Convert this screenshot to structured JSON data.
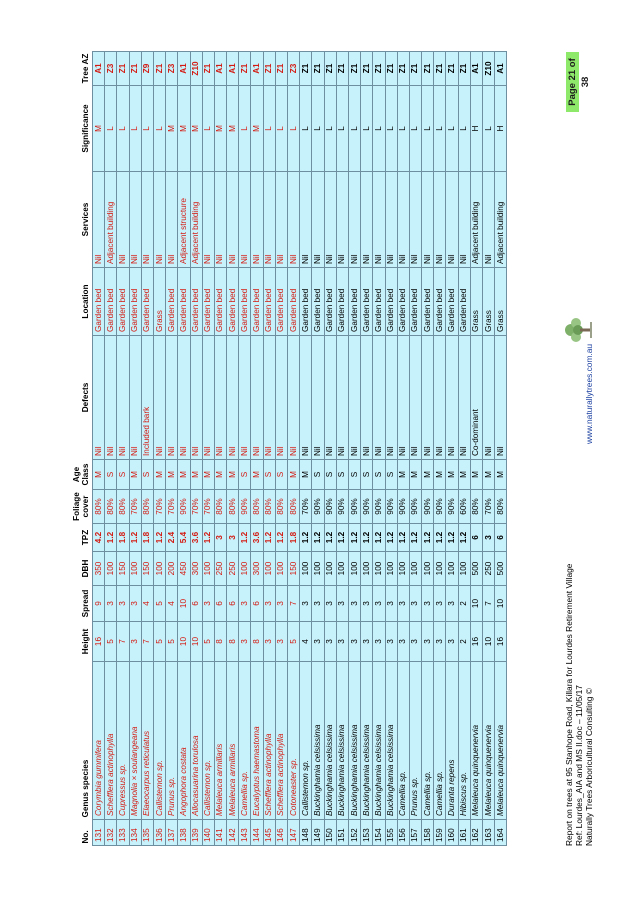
{
  "headers": [
    "No.",
    "Genus species",
    "Height",
    "Spread",
    "DBH",
    "TPZ",
    "Foliage cover",
    "Age Class",
    "Defects",
    "Location",
    "Services",
    "Significance",
    "Tree AZ"
  ],
  "rows": [
    [
      "131",
      "Corymbia gummifera",
      "16",
      "9",
      "350",
      "4.2",
      "80%",
      "M",
      "Nil",
      "Garden bed",
      "Nil",
      "M",
      "A1",
      "red"
    ],
    [
      "132",
      "Schefflera actinophylla",
      "5",
      "3",
      "100",
      "1.2",
      "80%",
      "S",
      "Nil",
      "Garden bed",
      "Adjacent building",
      "L",
      "Z3",
      "red"
    ],
    [
      "133",
      "Cupressus sp.",
      "7",
      "3",
      "150",
      "1.8",
      "80%",
      "S",
      "Nil",
      "Garden bed",
      "Nil",
      "L",
      "Z1",
      "red"
    ],
    [
      "134",
      "Magnolia × soulangeana",
      "3",
      "3",
      "100",
      "1.2",
      "70%",
      "M",
      "Nil",
      "Garden bed",
      "Nil",
      "L",
      "Z1",
      "red"
    ],
    [
      "135",
      "Elaeocarpus reticulatus",
      "7",
      "4",
      "150",
      "1.8",
      "80%",
      "S",
      "Included bark",
      "Garden bed",
      "Nil",
      "L",
      "Z9",
      "red"
    ],
    [
      "136",
      "Callistemon sp.",
      "5",
      "5",
      "100",
      "1.2",
      "70%",
      "M",
      "Nil",
      "Grass",
      "Nil",
      "L",
      "Z1",
      "red"
    ],
    [
      "137",
      "Prunus sp.",
      "5",
      "4",
      "200",
      "2.4",
      "70%",
      "M",
      "Nil",
      "Garden bed",
      "Nil",
      "M",
      "Z3",
      "red"
    ],
    [
      "138",
      "Angophora costata",
      "10",
      "10",
      "450",
      "5.4",
      "90%",
      "M",
      "Nil",
      "Garden bed",
      "Adjacent structure",
      "M",
      "A1",
      "red"
    ],
    [
      "139",
      "Allocasuarina torulosa",
      "10",
      "6",
      "300",
      "3.6",
      "70%",
      "M",
      "Nil",
      "Garden bed",
      "Adjacent building",
      "M",
      "Z10",
      "red"
    ],
    [
      "140",
      "Callistemon sp.",
      "5",
      "3",
      "100",
      "1.2",
      "70%",
      "M",
      "Nil",
      "Garden bed",
      "Nil",
      "L",
      "Z1",
      "red"
    ],
    [
      "141",
      "Melaleuca armillaris",
      "8",
      "6",
      "250",
      "3",
      "80%",
      "M",
      "Nil",
      "Garden bed",
      "Nil",
      "M",
      "A1",
      "red"
    ],
    [
      "142",
      "Melaleuca armillaris",
      "8",
      "6",
      "250",
      "3",
      "80%",
      "M",
      "Nil",
      "Garden bed",
      "Nil",
      "M",
      "A1",
      "red"
    ],
    [
      "143",
      "Camellia sp.",
      "3",
      "3",
      "100",
      "1.2",
      "90%",
      "S",
      "Nil",
      "Garden bed",
      "Nil",
      "L",
      "Z1",
      "red"
    ],
    [
      "144",
      "Eucalyptus haemastoma",
      "8",
      "6",
      "300",
      "3.6",
      "80%",
      "M",
      "Nil",
      "Garden bed",
      "Nil",
      "M",
      "A1",
      "red"
    ],
    [
      "145",
      "Schefflera actinophylla",
      "3",
      "3",
      "100",
      "1.2",
      "80%",
      "S",
      "Nil",
      "Garden bed",
      "Nil",
      "L",
      "Z1",
      "red"
    ],
    [
      "146",
      "Schefflera actinophylla",
      "3",
      "3",
      "100",
      "1.2",
      "80%",
      "S",
      "Nil",
      "Garden bed",
      "Nil",
      "L",
      "Z1",
      "red"
    ],
    [
      "147",
      "Cotoneaster sp.",
      "5",
      "7",
      "150",
      "1.8",
      "80%",
      "M",
      "Nil",
      "Garden bed",
      "Nil",
      "L",
      "Z3",
      "red"
    ],
    [
      "148",
      "Callistemon sp.",
      "4",
      "3",
      "100",
      "1.2",
      "70%",
      "M",
      "Nil",
      "Garden bed",
      "Nil",
      "L",
      "Z1",
      "black"
    ],
    [
      "149",
      "Buckinghamia celsissima",
      "3",
      "3",
      "100",
      "1.2",
      "90%",
      "S",
      "Nil",
      "Garden bed",
      "Nil",
      "L",
      "Z1",
      "black"
    ],
    [
      "150",
      "Buckinghamia celsissima",
      "3",
      "3",
      "100",
      "1.2",
      "90%",
      "S",
      "Nil",
      "Garden bed",
      "Nil",
      "L",
      "Z1",
      "black"
    ],
    [
      "151",
      "Buckinghamia celsissima",
      "3",
      "3",
      "100",
      "1.2",
      "90%",
      "S",
      "Nil",
      "Garden bed",
      "Nil",
      "L",
      "Z1",
      "black"
    ],
    [
      "152",
      "Buckinghamia celsissima",
      "3",
      "3",
      "100",
      "1.2",
      "90%",
      "S",
      "Nil",
      "Garden bed",
      "Nil",
      "L",
      "Z1",
      "black"
    ],
    [
      "153",
      "Buckinghamia celsissima",
      "3",
      "3",
      "100",
      "1.2",
      "90%",
      "S",
      "Nil",
      "Garden bed",
      "Nil",
      "L",
      "Z1",
      "black"
    ],
    [
      "154",
      "Buckinghamia celsissima",
      "3",
      "3",
      "100",
      "1.2",
      "90%",
      "S",
      "Nil",
      "Garden bed",
      "Nil",
      "L",
      "Z1",
      "black"
    ],
    [
      "155",
      "Buckinghamia celsissima",
      "3",
      "3",
      "100",
      "1.2",
      "90%",
      "S",
      "Nil",
      "Garden bed",
      "Nil",
      "L",
      "Z1",
      "black"
    ],
    [
      "156",
      "Camellia sp.",
      "3",
      "3",
      "100",
      "1.2",
      "90%",
      "M",
      "Nil",
      "Garden bed",
      "Nil",
      "L",
      "Z1",
      "black"
    ],
    [
      "157",
      "Prunus sp.",
      "3",
      "3",
      "100",
      "1.2",
      "90%",
      "M",
      "Nil",
      "Garden bed",
      "Nil",
      "L",
      "Z1",
      "black"
    ],
    [
      "158",
      "Camellia sp.",
      "3",
      "3",
      "100",
      "1.2",
      "90%",
      "M",
      "Nil",
      "Garden bed",
      "Nil",
      "L",
      "Z1",
      "black"
    ],
    [
      "159",
      "Camellia sp.",
      "3",
      "3",
      "100",
      "1.2",
      "90%",
      "M",
      "Nil",
      "Garden bed",
      "Nil",
      "L",
      "Z1",
      "black"
    ],
    [
      "160",
      "Duranta repens",
      "3",
      "3",
      "100",
      "1.2",
      "90%",
      "M",
      "Nil",
      "Garden bed",
      "Nil",
      "L",
      "Z1",
      "black"
    ],
    [
      "161",
      "Hibiscus sp.",
      "2",
      "2",
      "100",
      "1.2",
      "60%",
      "M",
      "Nil",
      "Garden bed",
      "Nil",
      "L",
      "Z1",
      "black"
    ],
    [
      "162",
      "Melaleuca quinquenervia",
      "16",
      "10",
      "500",
      "6",
      "80%",
      "M",
      "Co-dominant",
      "Grass",
      "Adjacent building",
      "H",
      "A1",
      "black"
    ],
    [
      "163",
      "Melaleuca quinquenervia",
      "10",
      "7",
      "250",
      "3",
      "70%",
      "M",
      "Nil",
      "Grass",
      "Nil",
      "L",
      "Z10",
      "black"
    ],
    [
      "164",
      "Melaleuca quinquenervia",
      "16",
      "10",
      "500",
      "6",
      "80%",
      "M",
      "Nil",
      "Grass",
      "Adjacent building",
      "H",
      "A1",
      "black"
    ]
  ],
  "footer": {
    "line1": "Report on trees at 95 Stanhope Road, Killara for Lourdes Retirement Village",
    "line2": "Ref: Lourdes_AIA and MS II.doc – 11/05/17",
    "line3": "Naturally Trees Arboricultural Consulting ©",
    "website": "www.naturallytrees.com.au",
    "page": "Page 21 of 38"
  },
  "colors": {
    "zone_fill": "#c8f2fb",
    "red_text": "#d31a12",
    "grid": "#6d8fa0",
    "badge": "#8ee86a"
  },
  "icons": {
    "logo": "tree-logo-icon"
  }
}
